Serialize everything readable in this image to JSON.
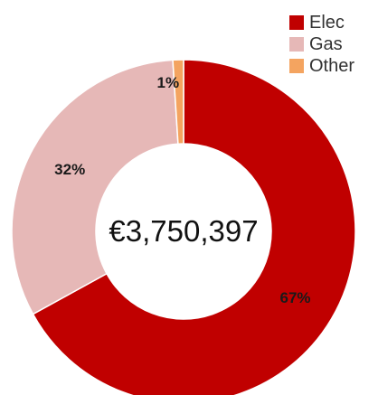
{
  "chart_data": {
    "type": "pie",
    "variant": "donut",
    "title": "",
    "center_label": "€3,750,397",
    "categories": [
      "Elec",
      "Gas",
      "Other"
    ],
    "values": [
      67,
      32,
      1
    ],
    "value_unit": "%",
    "data_labels": [
      "67%",
      "32%",
      "1%"
    ],
    "colors": [
      "#c00000",
      "#e6b8b7",
      "#f4a460"
    ],
    "legend": {
      "placement": "top-right",
      "entries": [
        "Elec",
        "Gas",
        "Other"
      ]
    }
  }
}
